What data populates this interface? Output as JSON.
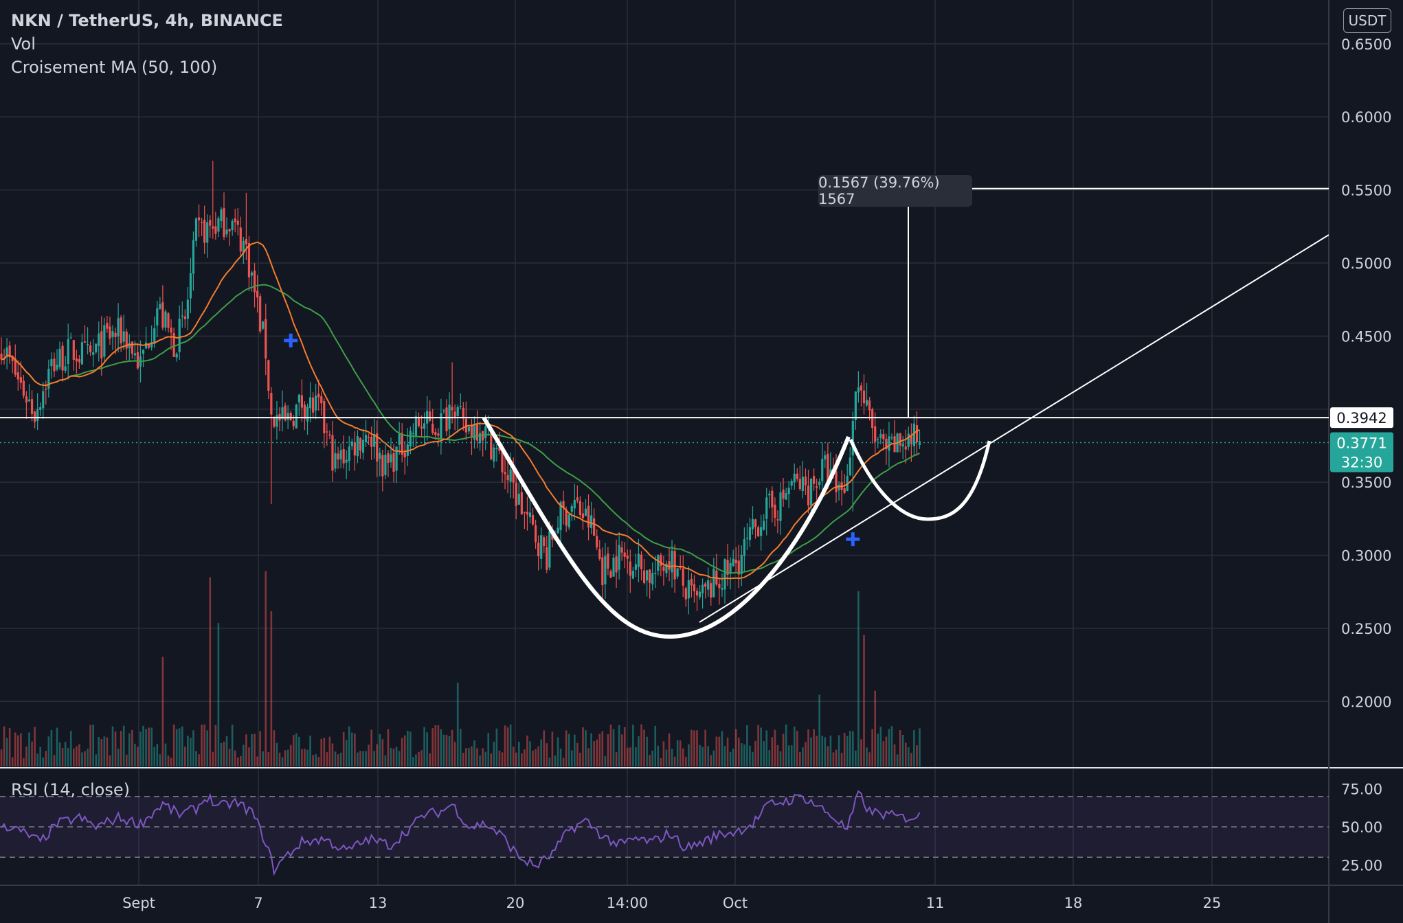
{
  "header": {
    "symbol": "NKN / TetherUS, 4h, BINANCE",
    "volume_label": "Vol",
    "ma_label": "Croisement MA (50, 100)",
    "rsi_label": "RSI (14, close)",
    "currency": "USDT"
  },
  "measure": {
    "label": "0.1567 (39.76%) 1567",
    "from": 0.3942,
    "to": 0.5509
  },
  "price_markers": {
    "resistance": {
      "value": 0.3942,
      "label": "0.3942"
    },
    "last": {
      "value": 0.3771,
      "label": "0.3771",
      "countdown": "32:30"
    }
  },
  "colors": {
    "background": "#131722",
    "grid": "#2a2e39",
    "up": "#26a69a",
    "down": "#ef5350",
    "ma_fast": "#f57c2e",
    "ma_slow": "#3f9e47",
    "rsi": "#7e57c2",
    "drawing": "#ffffff",
    "cross": "#2962ff"
  },
  "chart_data": {
    "type": "candlestick",
    "ylim": [
      0.155,
      0.68
    ],
    "y_ticks": [
      "0.6500",
      "0.6000",
      "0.5500",
      "0.5000",
      "0.4500",
      "0.3500",
      "0.3000",
      "0.2500",
      "0.2000"
    ],
    "x_ticks": [
      "Sept",
      "7",
      "13",
      "20",
      "14:00",
      "Oct",
      "11",
      "18",
      "25"
    ],
    "rsi_ticks": [
      "75.00",
      "50.00",
      "25.00"
    ],
    "rsi_levels": [
      70,
      30
    ],
    "rsi_ylim": [
      12,
      88
    ],
    "close_anchors": [
      [
        0,
        0.445
      ],
      [
        6,
        0.42
      ],
      [
        12,
        0.398
      ],
      [
        18,
        0.43
      ],
      [
        25,
        0.44
      ],
      [
        32,
        0.435
      ],
      [
        38,
        0.45
      ],
      [
        44,
        0.452
      ],
      [
        50,
        0.43
      ],
      [
        56,
        0.47
      ],
      [
        62,
        0.445
      ],
      [
        66,
        0.46
      ],
      [
        70,
        0.52
      ],
      [
        76,
        0.525
      ],
      [
        82,
        0.53
      ],
      [
        88,
        0.51
      ],
      [
        92,
        0.47
      ],
      [
        95,
        0.44
      ],
      [
        97,
        0.395
      ],
      [
        102,
        0.39
      ],
      [
        108,
        0.405
      ],
      [
        114,
        0.4
      ],
      [
        120,
        0.362
      ],
      [
        126,
        0.375
      ],
      [
        132,
        0.385
      ],
      [
        138,
        0.36
      ],
      [
        144,
        0.375
      ],
      [
        150,
        0.39
      ],
      [
        156,
        0.388
      ],
      [
        160,
        0.395
      ],
      [
        162,
        0.41
      ],
      [
        166,
        0.385
      ],
      [
        172,
        0.39
      ],
      [
        178,
        0.37
      ],
      [
        184,
        0.345
      ],
      [
        190,
        0.32
      ],
      [
        196,
        0.3
      ],
      [
        200,
        0.325
      ],
      [
        206,
        0.335
      ],
      [
        212,
        0.32
      ],
      [
        216,
        0.29
      ],
      [
        222,
        0.3
      ],
      [
        228,
        0.295
      ],
      [
        234,
        0.285
      ],
      [
        240,
        0.3
      ],
      [
        246,
        0.275
      ],
      [
        250,
        0.268
      ],
      [
        256,
        0.28
      ],
      [
        262,
        0.29
      ],
      [
        266,
        0.3
      ],
      [
        270,
        0.315
      ],
      [
        274,
        0.33
      ],
      [
        280,
        0.335
      ],
      [
        284,
        0.35
      ],
      [
        290,
        0.345
      ],
      [
        296,
        0.36
      ],
      [
        300,
        0.345
      ],
      [
        304,
        0.35
      ],
      [
        306,
        0.4
      ],
      [
        308,
        0.42
      ],
      [
        310,
        0.405
      ],
      [
        314,
        0.38
      ],
      [
        318,
        0.37
      ],
      [
        324,
        0.378
      ],
      [
        330,
        0.38
      ]
    ],
    "rsi_anchors": [
      [
        0,
        52
      ],
      [
        8,
        46
      ],
      [
        14,
        40
      ],
      [
        20,
        52
      ],
      [
        28,
        56
      ],
      [
        34,
        50
      ],
      [
        42,
        56
      ],
      [
        50,
        52
      ],
      [
        58,
        65
      ],
      [
        64,
        58
      ],
      [
        70,
        62
      ],
      [
        74,
        70
      ],
      [
        78,
        63
      ],
      [
        84,
        66
      ],
      [
        90,
        60
      ],
      [
        95,
        40
      ],
      [
        98,
        22
      ],
      [
        102,
        30
      ],
      [
        108,
        40
      ],
      [
        116,
        42
      ],
      [
        124,
        34
      ],
      [
        132,
        42
      ],
      [
        140,
        38
      ],
      [
        146,
        48
      ],
      [
        152,
        58
      ],
      [
        158,
        60
      ],
      [
        162,
        65
      ],
      [
        168,
        50
      ],
      [
        174,
        52
      ],
      [
        180,
        44
      ],
      [
        186,
        30
      ],
      [
        192,
        24
      ],
      [
        198,
        32
      ],
      [
        204,
        48
      ],
      [
        210,
        54
      ],
      [
        216,
        44
      ],
      [
        222,
        38
      ],
      [
        228,
        42
      ],
      [
        234,
        40
      ],
      [
        240,
        46
      ],
      [
        246,
        36
      ],
      [
        252,
        40
      ],
      [
        258,
        45
      ],
      [
        264,
        47
      ],
      [
        270,
        52
      ],
      [
        276,
        65
      ],
      [
        282,
        67
      ],
      [
        288,
        70
      ],
      [
        294,
        63
      ],
      [
        300,
        55
      ],
      [
        304,
        48
      ],
      [
        308,
        72
      ],
      [
        312,
        60
      ],
      [
        318,
        58
      ],
      [
        324,
        56
      ],
      [
        330,
        57
      ]
    ],
    "volume_spikes": [
      [
        75,
        0.95
      ],
      [
        78,
        0.72
      ],
      [
        95,
        0.98
      ],
      [
        97,
        0.78
      ],
      [
        58,
        0.55
      ],
      [
        164,
        0.42
      ],
      [
        294,
        0.36
      ],
      [
        308,
        0.88
      ],
      [
        310,
        0.66
      ],
      [
        314,
        0.38
      ]
    ],
    "ma_crosses": [
      {
        "index": 104,
        "value": 0.447
      },
      {
        "index": 306,
        "value": 0.311
      }
    ]
  }
}
